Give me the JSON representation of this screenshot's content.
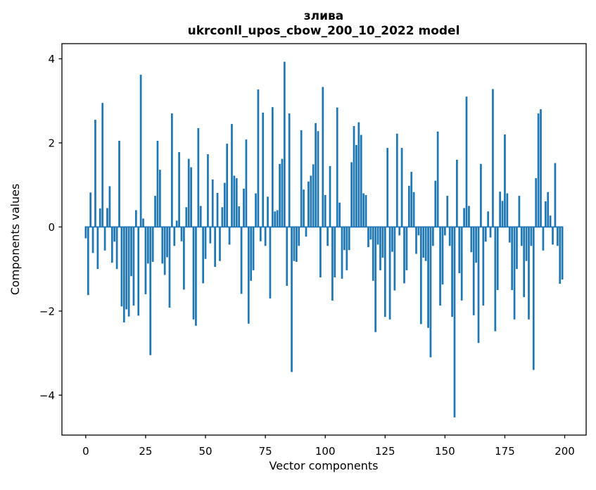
{
  "figure": {
    "title_line1": "злива",
    "title_line2": "ukrconll_upos_cbow_200_10_2022 model",
    "xlabel": "Vector components",
    "ylabel": "Components values"
  },
  "chart_data": {
    "type": "bar",
    "title": "злива",
    "subtitle": "ukrconll_upos_cbow_200_10_2022 model",
    "xlabel": "Vector components",
    "ylabel": "Components values",
    "bar_color": "#1f77b4",
    "background_color": "#ffffff",
    "spine_color": "#000000",
    "grid": false,
    "legend": false,
    "bar_width_data_units": 0.8,
    "xlim": [
      -9.95,
      208.95
    ],
    "ylim": [
      -4.95,
      4.36
    ],
    "x_tick_values": [
      0,
      25,
      50,
      75,
      100,
      125,
      150,
      175,
      200
    ],
    "x_tick_labels": [
      "0",
      "25",
      "50",
      "75",
      "100",
      "125",
      "150",
      "175",
      "200"
    ],
    "y_tick_values": [
      -4,
      -2,
      0,
      2,
      4
    ],
    "y_tick_labels": [
      "−4",
      "−2",
      "0",
      "2",
      "4"
    ],
    "x_is_index": true,
    "n_components": 200,
    "values": [
      -0.27,
      -1.62,
      0.82,
      -0.62,
      2.55,
      -1.0,
      0.44,
      2.95,
      -0.56,
      0.45,
      0.97,
      -0.85,
      -0.35,
      -1.0,
      2.05,
      -1.89,
      -2.27,
      -1.96,
      -2.13,
      -1.17,
      -1.87,
      0.4,
      -2.11,
      3.62,
      0.2,
      -1.6,
      -0.87,
      -3.05,
      -0.83,
      0.74,
      2.05,
      1.36,
      -0.87,
      -1.14,
      -0.72,
      -1.92,
      2.7,
      -0.45,
      0.15,
      1.78,
      -0.34,
      -1.49,
      0.47,
      1.62,
      1.42,
      -2.2,
      -2.35,
      2.35,
      0.5,
      -1.34,
      -0.76,
      1.73,
      -0.39,
      1.13,
      -0.95,
      0.81,
      -0.81,
      0.47,
      1.05,
      1.98,
      -0.42,
      2.45,
      1.22,
      1.16,
      0.49,
      -1.59,
      0.91,
      2.08,
      -2.3,
      -1.28,
      -1.03,
      0.8,
      3.27,
      -0.34,
      2.72,
      -0.45,
      0.72,
      -1.7,
      2.85,
      0.37,
      0.4,
      1.5,
      1.62,
      3.93,
      -1.4,
      2.7,
      -3.45,
      -0.81,
      -0.83,
      -0.45,
      2.3,
      0.89,
      -0.23,
      1.08,
      1.22,
      1.49,
      2.47,
      2.28,
      -1.2,
      3.33,
      0.76,
      -0.45,
      1.45,
      -1.75,
      -1.2,
      2.84,
      0.58,
      -1.23,
      -0.55,
      -1.03,
      -0.55,
      1.54,
      2.4,
      1.95,
      2.49,
      2.19,
      0.8,
      0.76,
      -0.48,
      -0.3,
      -1.28,
      -2.5,
      -0.42,
      -1.03,
      -0.73,
      -2.14,
      1.88,
      -2.2,
      -0.59,
      -1.51,
      2.22,
      -0.2,
      1.88,
      -1.34,
      -1.03,
      0.98,
      1.31,
      0.83,
      -0.64,
      -0.2,
      -2.31,
      -0.73,
      -0.81,
      -2.4,
      -3.1,
      -0.45,
      1.1,
      2.27,
      -1.87,
      -1.37,
      -0.2,
      0.74,
      -0.45,
      -2.14,
      -4.53,
      1.6,
      -1.1,
      -1.75,
      0.45,
      3.1,
      0.5,
      -0.6,
      -2.1,
      -0.85,
      -2.76,
      1.5,
      -1.87,
      -0.35,
      0.37,
      -0.25,
      3.28,
      -2.48,
      -1.5,
      0.84,
      0.62,
      2.2,
      0.8,
      -0.37,
      -1.5,
      -2.2,
      -1.0,
      0.74,
      -0.45,
      -1.67,
      -0.81,
      -2.2,
      -0.45,
      -3.4,
      1.16,
      2.7,
      2.8,
      -0.56,
      0.61,
      0.83,
      0.27,
      -0.42,
      1.52,
      -0.45,
      -1.35,
      -1.25
    ]
  }
}
